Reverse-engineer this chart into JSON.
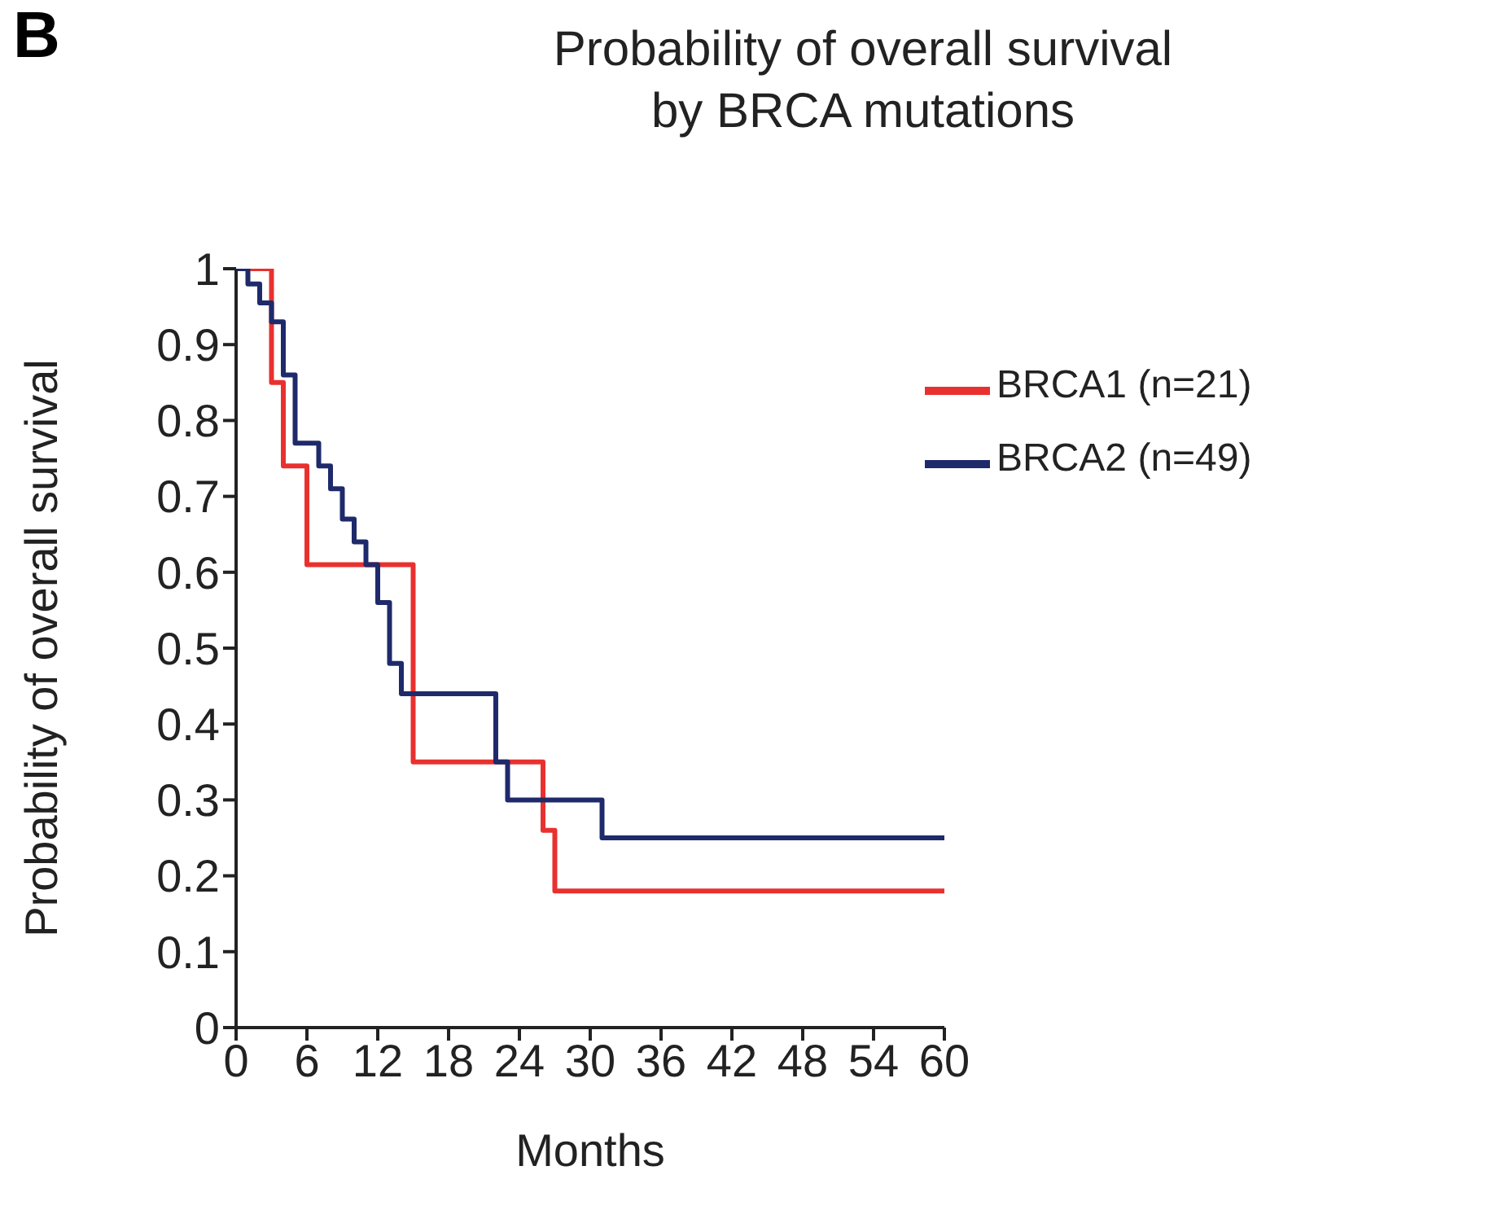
{
  "chart_data": {
    "type": "step",
    "title": "Probability of overall survival\nby BRCA mutations",
    "xlabel": "Months",
    "ylabel": "Probability of overall survival",
    "annotations": [
      "B"
    ],
    "xlim": [
      0,
      60
    ],
    "xticks": [
      0,
      6,
      12,
      18,
      24,
      30,
      36,
      42,
      48,
      54,
      60
    ],
    "ylim": [
      0,
      1
    ],
    "yticks": [
      0,
      0.1,
      0.2,
      0.3,
      0.4,
      0.5,
      0.6,
      0.7,
      0.8,
      0.9,
      1
    ],
    "grid": false,
    "legend": "top right",
    "marker": "none",
    "line_style": "solid",
    "series": [
      {
        "name": "BRCA1 (n=21)",
        "color": "#e8312f",
        "x": [
          0,
          3,
          4,
          6,
          15,
          26,
          27,
          60
        ],
        "values": [
          1,
          0.85,
          0.74,
          0.61,
          0.35,
          0.26,
          0.18,
          0.18
        ]
      },
      {
        "name": "BRCA2 (n=49)",
        "color": "#1f2a6b",
        "x": [
          0,
          1,
          2,
          3,
          4,
          5,
          7,
          8,
          9,
          10,
          11,
          12,
          13,
          14,
          22,
          23,
          31,
          60
        ],
        "values": [
          1,
          0.98,
          0.955,
          0.93,
          0.86,
          0.77,
          0.74,
          0.71,
          0.67,
          0.64,
          0.61,
          0.56,
          0.48,
          0.44,
          0.35,
          0.3,
          0.25,
          0.25
        ]
      }
    ]
  }
}
